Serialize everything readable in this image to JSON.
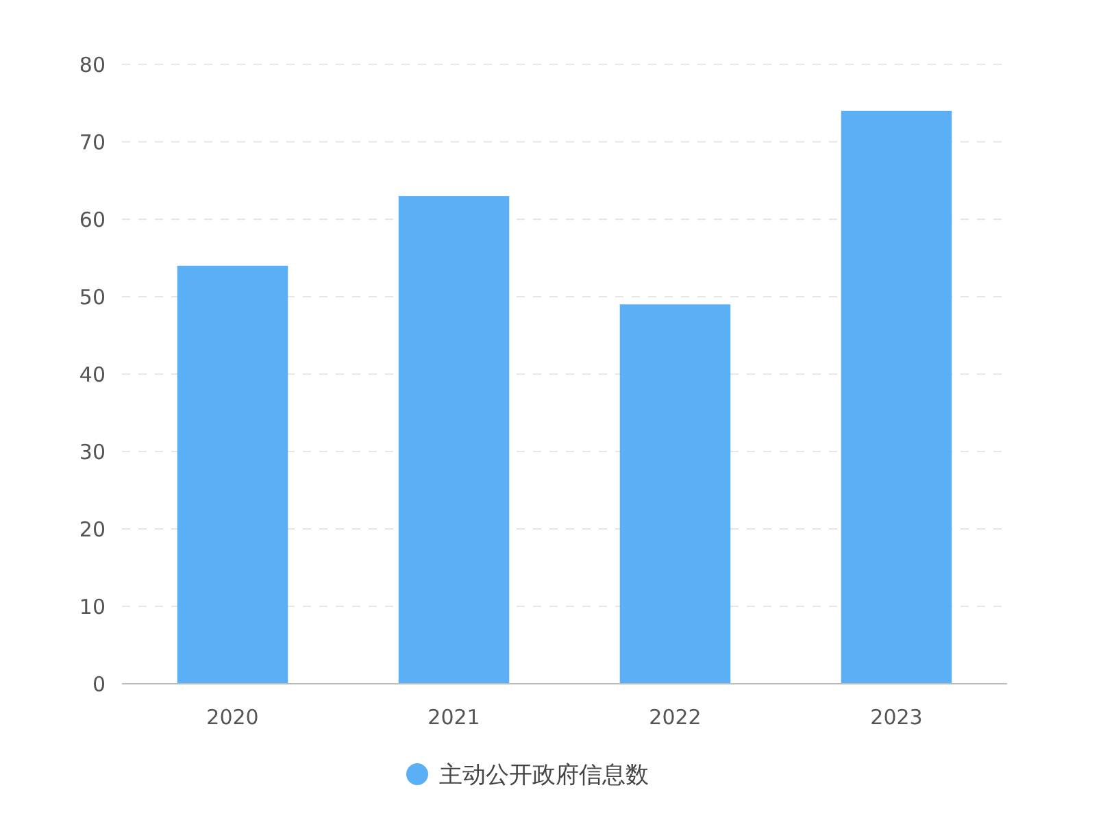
{
  "chart_data": {
    "type": "bar",
    "categories": [
      "2020",
      "2021",
      "2022",
      "2023"
    ],
    "series": [
      {
        "name": "主动公开政府信息数",
        "color": "#5aaff5",
        "values": [
          54,
          63,
          49,
          74
        ]
      }
    ],
    "ylim": [
      0,
      80
    ],
    "yticks": [
      0,
      10,
      20,
      30,
      40,
      50,
      60,
      70,
      80
    ],
    "grid": "y",
    "legend": "bottom"
  }
}
